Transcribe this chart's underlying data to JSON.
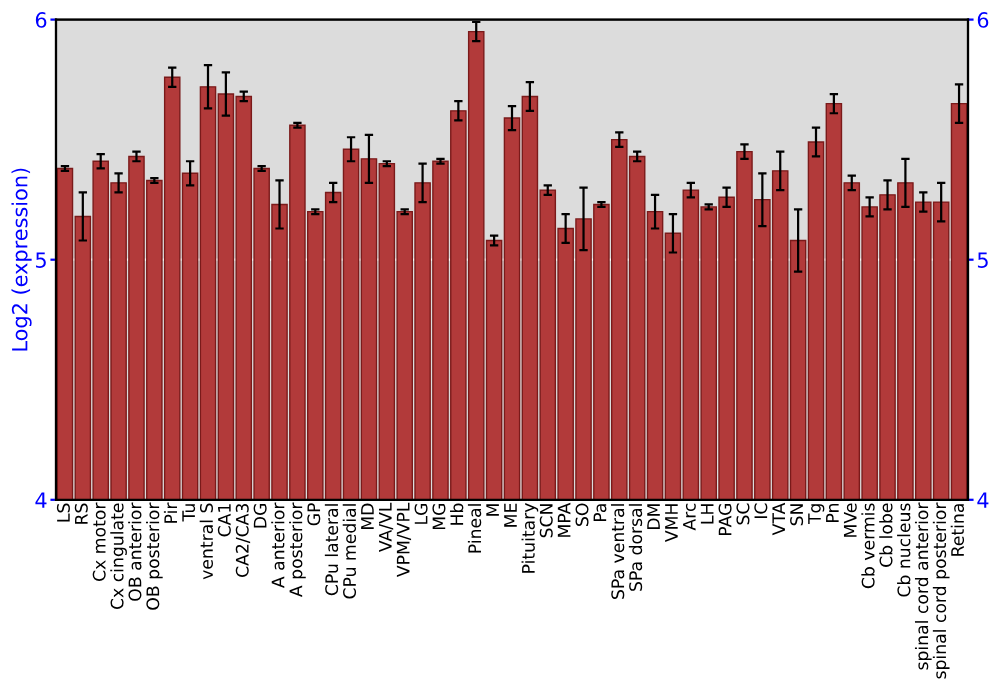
{
  "chart_data": {
    "type": "bar",
    "ylabel": "Log2 (expression)",
    "categories": [
      "LS",
      "RS",
      "Cx motor",
      "Cx cingulate",
      "OB anterior",
      "OB posterior",
      "Pir",
      "Tu",
      "ventral S",
      "CA1",
      "CA2/CA3",
      "DG",
      "A anterior",
      "A posterior",
      "GP",
      "CPu lateral",
      "CPu medial",
      "MD",
      "VA/VL",
      "VPM/VPL",
      "LG",
      "MG",
      "Hb",
      "Pineal",
      "M",
      "ME",
      "Pituitary",
      "SCN",
      "MPA",
      "SO",
      "Pa",
      "SPa ventral",
      "SPa dorsal",
      "DM",
      "VMH",
      "Arc",
      "LH",
      "PAG",
      "SC",
      "IC",
      "VTA",
      "SN",
      "Tg",
      "Pn",
      "MVe",
      "Cb vermis",
      "Cb lobe",
      "Cb nucleus",
      "spinal cord anterior",
      "spinal cord posterior",
      "Retina"
    ],
    "values": [
      5.38,
      5.18,
      5.41,
      5.32,
      5.43,
      5.33,
      5.76,
      5.36,
      5.72,
      5.69,
      5.68,
      5.38,
      5.23,
      5.56,
      5.2,
      5.28,
      5.46,
      5.42,
      5.4,
      5.2,
      5.32,
      5.41,
      5.62,
      5.95,
      5.08,
      5.59,
      5.68,
      5.29,
      5.13,
      5.17,
      5.23,
      5.5,
      5.43,
      5.2,
      5.11,
      5.29,
      5.22,
      5.26,
      5.45,
      5.25,
      5.37,
      5.08,
      5.49,
      5.65,
      5.32,
      5.22,
      5.27,
      5.32,
      5.24,
      5.24,
      5.65
    ],
    "errors": [
      0.01,
      0.1,
      0.03,
      0.04,
      0.02,
      0.01,
      0.04,
      0.05,
      0.09,
      0.09,
      0.02,
      0.01,
      0.1,
      0.01,
      0.01,
      0.04,
      0.05,
      0.1,
      0.01,
      0.01,
      0.08,
      0.01,
      0.04,
      0.04,
      0.02,
      0.05,
      0.06,
      0.02,
      0.06,
      0.13,
      0.01,
      0.03,
      0.02,
      0.07,
      0.08,
      0.03,
      0.01,
      0.04,
      0.03,
      0.11,
      0.08,
      0.13,
      0.06,
      0.04,
      0.03,
      0.04,
      0.06,
      0.1,
      0.04,
      0.08,
      0.08
    ],
    "color": "#b23a3a",
    "ylim": [
      4,
      6
    ],
    "yticks": [
      4,
      5,
      6
    ],
    "y2lim": [
      4,
      6
    ],
    "y2ticks": [
      4,
      5,
      6
    ],
    "grid": "y"
  }
}
